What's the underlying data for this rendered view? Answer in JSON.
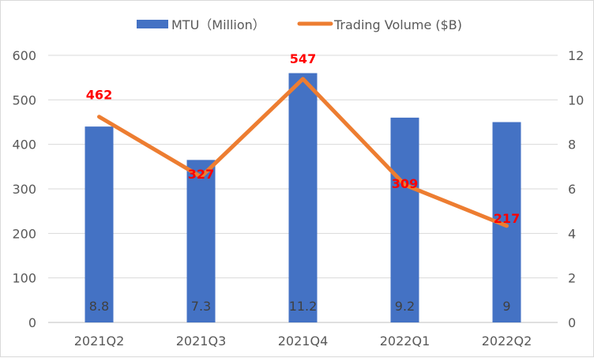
{
  "chart_data": {
    "type": "bar+line",
    "categories": [
      "2021Q2",
      "2021Q3",
      "2021Q4",
      "2022Q1",
      "2022Q2"
    ],
    "series": [
      {
        "name": "MTU（Million）",
        "type": "bar",
        "axis": "right",
        "values": [
          8.8,
          7.3,
          11.2,
          9.2,
          9
        ],
        "labels": [
          "8.8",
          "7.3",
          "11.2",
          "9.2",
          "9"
        ],
        "color": "#4472C4"
      },
      {
        "name": "Trading Volume ($B)",
        "type": "line",
        "axis": "left",
        "values": [
          462,
          327,
          547,
          309,
          217
        ],
        "labels": [
          "462",
          "327",
          "547",
          "309",
          "217"
        ],
        "color": "#ED7D31",
        "label_color": "#FF0000"
      }
    ],
    "y_left": {
      "range": [
        0,
        600
      ],
      "ticks": [
        "0",
        "100",
        "200",
        "300",
        "400",
        "500",
        "600"
      ]
    },
    "y_right": {
      "range": [
        0,
        12
      ],
      "ticks": [
        "0",
        "2",
        "4",
        "6",
        "8",
        "10",
        "12"
      ]
    },
    "grid": true,
    "legend": "top"
  }
}
